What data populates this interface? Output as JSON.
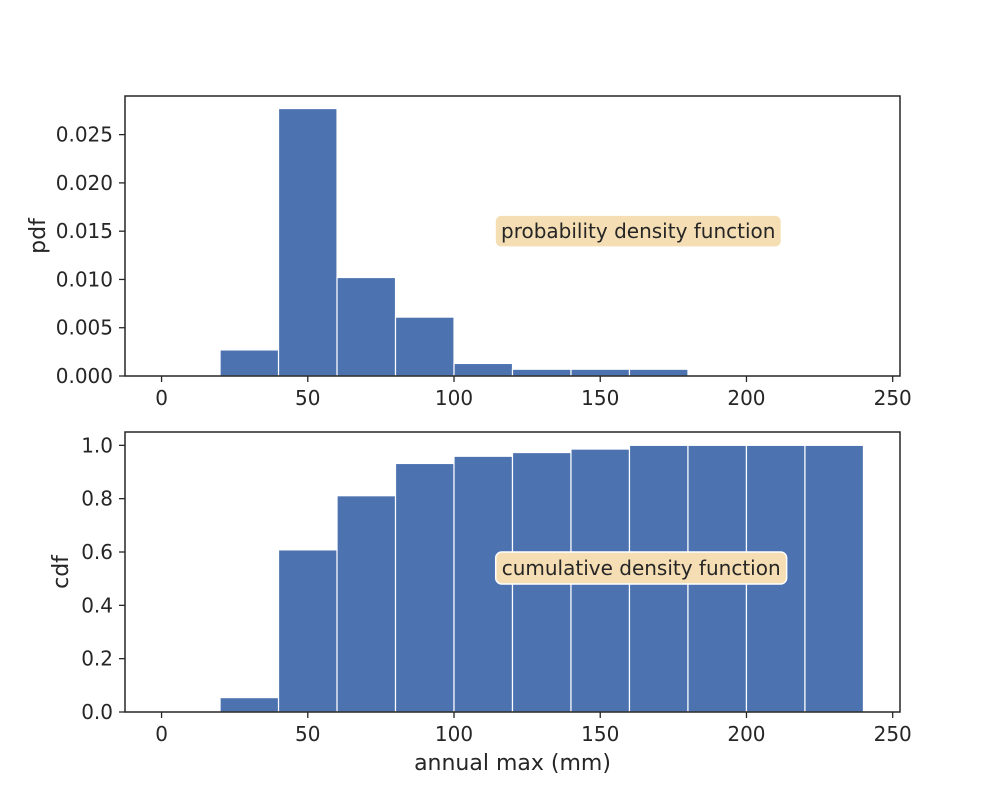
{
  "chart_data": [
    {
      "type": "bar",
      "ylabel": "pdf",
      "xlabel": "",
      "xlim": [
        -12.5,
        252.5
      ],
      "ylim": [
        0,
        0.029
      ],
      "xticks": [
        0,
        50,
        100,
        150,
        200,
        250
      ],
      "xtick_labels": [
        "0",
        "50",
        "100",
        "150",
        "200",
        "250"
      ],
      "yticks": [
        0.0,
        0.005,
        0.01,
        0.015,
        0.02,
        0.025
      ],
      "ytick_labels": [
        "0.000",
        "0.005",
        "0.010",
        "0.015",
        "0.020",
        "0.025"
      ],
      "bin_edges": [
        0,
        20,
        40,
        60,
        80,
        100,
        120,
        140,
        160,
        180,
        200,
        220,
        240
      ],
      "values": [
        0.0,
        0.0027,
        0.0277,
        0.0102,
        0.0061,
        0.0013,
        0.0007,
        0.0007,
        0.0007,
        0.0,
        0.0,
        0.0
      ],
      "bar_color": "#4c72b0",
      "annotation": {
        "text": "probability density function",
        "x": 163,
        "y": 0.015,
        "box_color": "#f5deb3"
      },
      "grid": false
    },
    {
      "type": "bar",
      "ylabel": "cdf",
      "xlabel": "annual max (mm)",
      "xlim": [
        -12.5,
        252.5
      ],
      "ylim": [
        0,
        1.05
      ],
      "xticks": [
        0,
        50,
        100,
        150,
        200,
        250
      ],
      "xtick_labels": [
        "0",
        "50",
        "100",
        "150",
        "200",
        "250"
      ],
      "yticks": [
        0.0,
        0.2,
        0.4,
        0.6,
        0.8,
        1.0
      ],
      "ytick_labels": [
        "0.0",
        "0.2",
        "0.4",
        "0.6",
        "0.8",
        "1.0"
      ],
      "bin_edges": [
        0,
        20,
        40,
        60,
        80,
        100,
        120,
        140,
        160,
        180,
        200,
        220,
        240
      ],
      "values": [
        0.0,
        0.054,
        0.608,
        0.811,
        0.932,
        0.959,
        0.973,
        0.986,
        1.0,
        1.0,
        1.0,
        1.0
      ],
      "bar_color": "#4c72b0",
      "annotation": {
        "text": "cumulative density function",
        "x": 164,
        "y": 0.54,
        "box_color": "#f5deb3"
      },
      "grid": false
    }
  ]
}
